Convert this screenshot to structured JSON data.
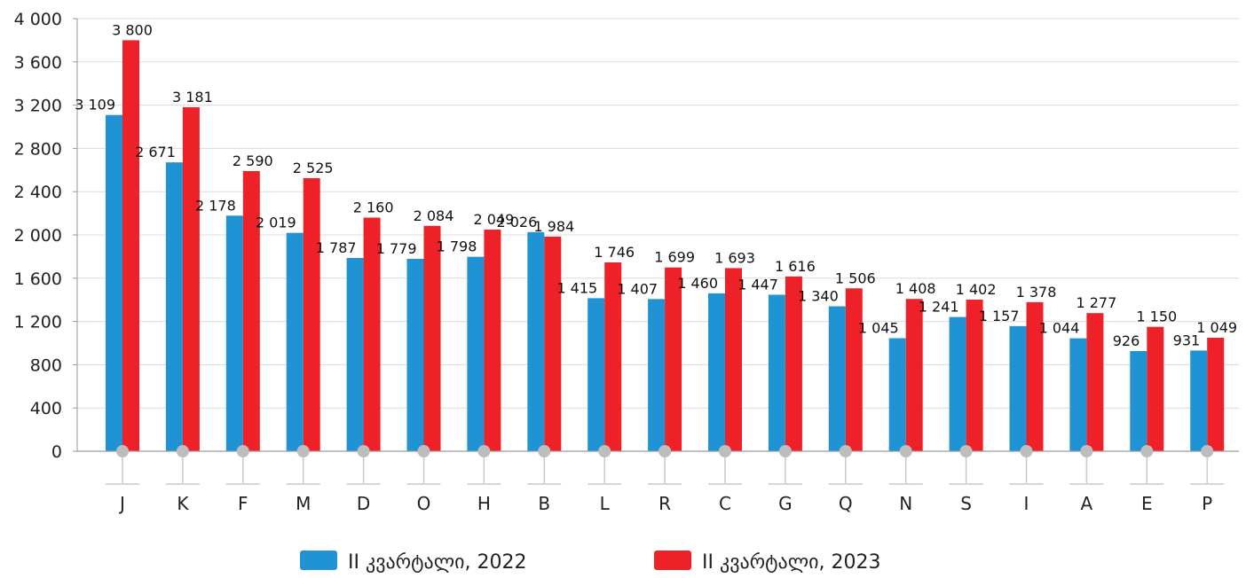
{
  "chart_data": {
    "type": "bar",
    "categories": [
      "J",
      "K",
      "F",
      "M",
      "D",
      "O",
      "H",
      "B",
      "L",
      "R",
      "C",
      "G",
      "Q",
      "N",
      "S",
      "I",
      "A",
      "E",
      "P"
    ],
    "series": [
      {
        "name": "II კვარტალი, 2022",
        "color": "#1f93d3",
        "values": [
          3109,
          2671,
          2178,
          2019,
          1787,
          1779,
          1798,
          2026,
          1415,
          1407,
          1460,
          1447,
          1340,
          1045,
          1241,
          1157,
          1044,
          926,
          931
        ]
      },
      {
        "name": "II კვარტალი, 2023",
        "color": "#ee2128",
        "values": [
          3800,
          3181,
          2590,
          2525,
          2160,
          2084,
          2049,
          1984,
          1746,
          1699,
          1693,
          1616,
          1506,
          1408,
          1402,
          1378,
          1277,
          1150,
          1049
        ]
      }
    ],
    "data_labels": [
      [
        "3 109",
        "2 671",
        "2 178",
        "2 019",
        "1 787",
        "1 779",
        "1 798",
        "2 026",
        "1 415",
        "1 407",
        "1 460",
        "1 447",
        "1 340",
        "1 045",
        "1 241",
        "1 157",
        "1 044",
        "926",
        "931"
      ],
      [
        "3 800",
        "3 181",
        "2 590",
        "2 525",
        "2 160",
        "2 084",
        "2 049",
        "1 984",
        "1 746",
        "1 699",
        "1 693",
        "1 616",
        "1 506",
        "1 408",
        "1 402",
        "1 378",
        "1 277",
        "1 150",
        "1 049"
      ]
    ],
    "y_ticks": [
      0,
      400,
      800,
      1200,
      1600,
      2000,
      2400,
      2800,
      3200,
      3600,
      4000
    ],
    "y_tick_labels": [
      "0",
      "400",
      "800",
      "1 200",
      "1 600",
      "2 000",
      "2 400",
      "2 800",
      "3 200",
      "3 600",
      "4 000"
    ],
    "ylim": [
      0,
      4000
    ],
    "grid": true,
    "legend_position": "bottom-center"
  }
}
